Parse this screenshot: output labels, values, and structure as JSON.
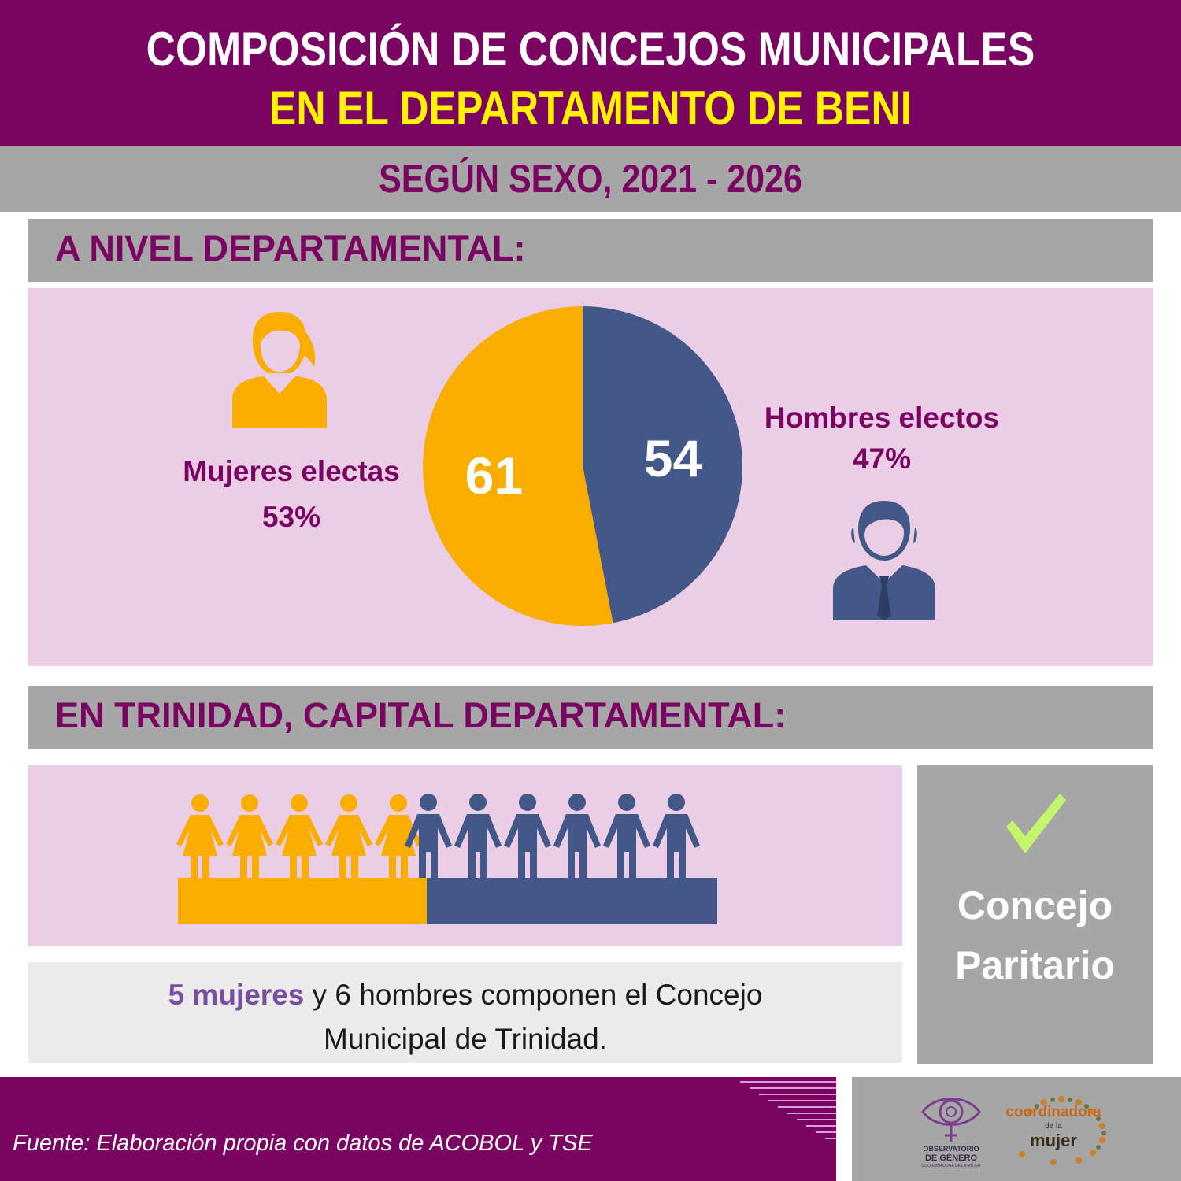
{
  "header": {
    "title_line1": "COMPOSICIÓN DE CONCEJOS MUNICIPALES",
    "title_line2": "EN EL DEPARTAMENTO DE BENI",
    "subtitle": "SEGÚN SEXO, 2021 - 2026"
  },
  "section1": {
    "title": "A NIVEL DEPARTAMENTAL:",
    "women_label": "Mujeres electas",
    "women_pct": "53%",
    "men_label": "Hombres electos",
    "men_pct": "47%"
  },
  "section2": {
    "title": "EN TRINIDAD, CAPITAL DEPARTAMENTAL:",
    "note_highlight": "5 mujeres",
    "note_rest_line1": " y 6 hombres componen el Concejo",
    "note_line2": "Municipal de Trinidad.",
    "badge_line1": "Concejo",
    "badge_line2": "Paritario"
  },
  "footer": {
    "source": "Fuente: Elaboración propia con datos de ACOBOL y TSE",
    "logo1_line1": "OBSERVATORIO",
    "logo1_line2": "DE GÉNERO",
    "logo1_line3": "COORDINADORA DE LA MUJER",
    "logo2_line1": "coordinadora",
    "logo2_line2": "de la",
    "logo2_line3": "mujer"
  },
  "colors": {
    "purple": "#7a0461",
    "women": "#f8ad00",
    "men": "#435888",
    "pink_bg": "#ebcde6",
    "gray": "#a6a6a6",
    "check": "#c4f56a"
  },
  "chart_data": [
    {
      "type": "pie",
      "title": "A NIVEL DEPARTAMENTAL:",
      "slices": [
        {
          "name": "Mujeres electas",
          "value": 61,
          "percent": 53,
          "color": "#f8ad00"
        },
        {
          "name": "Hombres electos",
          "value": 54,
          "percent": 47,
          "color": "#435888"
        }
      ]
    },
    {
      "type": "pictogram",
      "title": "EN TRINIDAD, CAPITAL DEPARTAMENTAL:",
      "series": [
        {
          "name": "mujeres",
          "value": 5,
          "color": "#f8ad00"
        },
        {
          "name": "hombres",
          "value": 6,
          "color": "#435888"
        }
      ]
    }
  ]
}
